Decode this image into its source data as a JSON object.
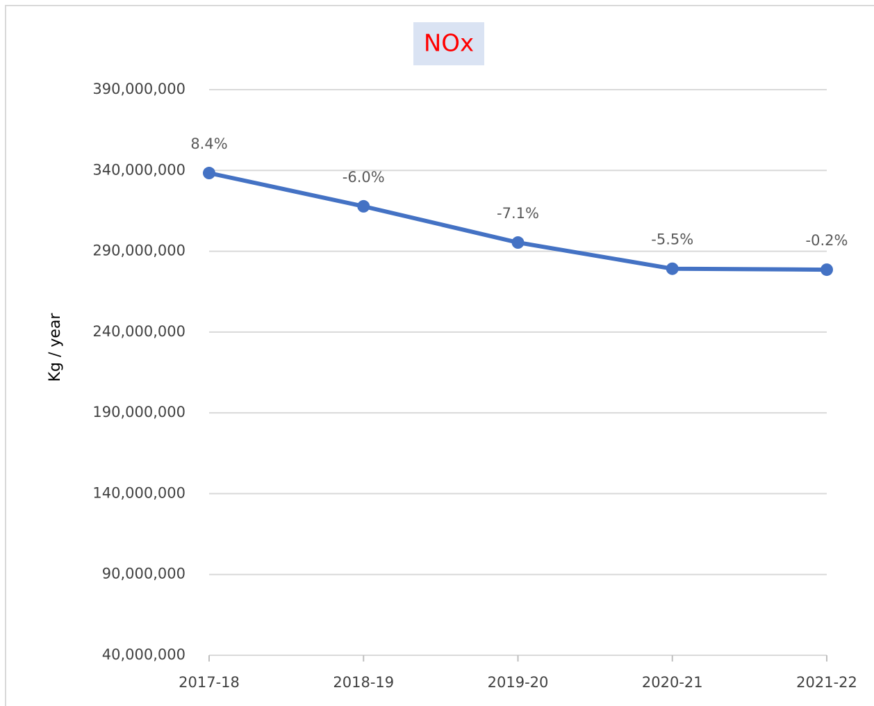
{
  "chart_data": {
    "type": "line",
    "title": "NOx",
    "y_label": "Kg / year",
    "categories": [
      "2017-18",
      "2018-19",
      "2019-20",
      "2020-21",
      "2021-22"
    ],
    "series": [
      {
        "name": "NOx",
        "color": "#4472c4",
        "values": [
          338400000,
          317800000,
          295400000,
          279200000,
          278600000
        ]
      }
    ],
    "annotations": [
      "8.4%",
      "-6.0%",
      "-7.1%",
      "-5.5%",
      "-0.2%"
    ],
    "ylim": [
      40000000,
      390000000
    ],
    "yticks": [
      {
        "value": 40000000,
        "label": "40,000,000"
      },
      {
        "value": 90000000,
        "label": "90,000,000"
      },
      {
        "value": 140000000,
        "label": "140,000,000"
      },
      {
        "value": 190000000,
        "label": "190,000,000"
      },
      {
        "value": 240000000,
        "label": "240,000,000"
      },
      {
        "value": 290000000,
        "label": "290,000,000"
      },
      {
        "value": 340000000,
        "label": "340,000,000"
      },
      {
        "value": 390000000,
        "label": "390,000,000"
      }
    ],
    "grid": true
  }
}
